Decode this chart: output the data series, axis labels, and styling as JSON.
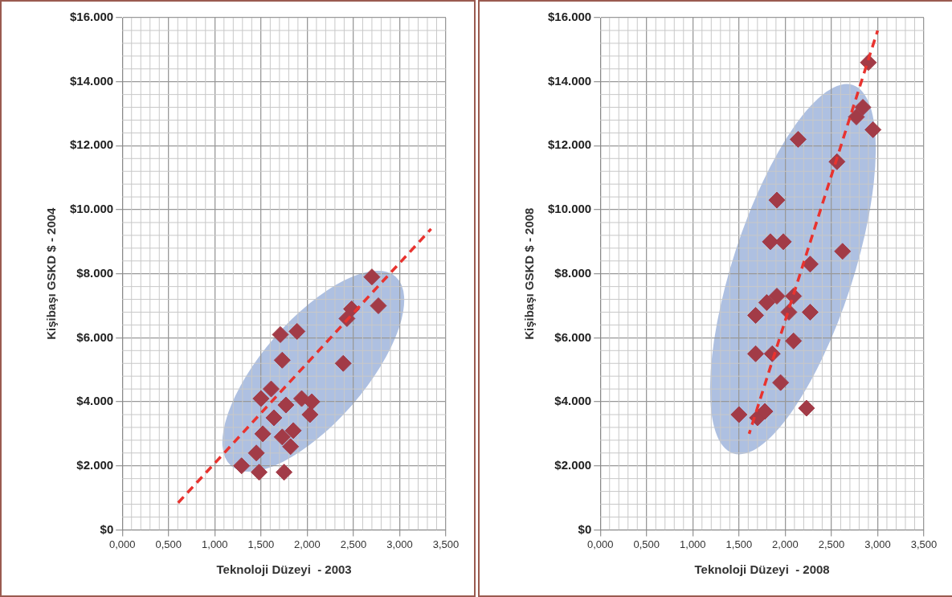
{
  "chart_data": [
    {
      "type": "scatter",
      "xlabel": "Teknoloji Düzeyi  - 2003",
      "ylabel": "Kişibaşı GSKD $ - 2004",
      "xlim": [
        0,
        3.5
      ],
      "ylim": [
        0,
        16000
      ],
      "xticks": [
        {
          "value": 0,
          "label": "0,000"
        },
        {
          "value": 0.5,
          "label": "0,500"
        },
        {
          "value": 1,
          "label": "1,000"
        },
        {
          "value": 1.5,
          "label": "1,500"
        },
        {
          "value": 2,
          "label": "2,000"
        },
        {
          "value": 2.5,
          "label": "2,500"
        },
        {
          "value": 3,
          "label": "3,000"
        },
        {
          "value": 3.5,
          "label": "3,500"
        }
      ],
      "yticks": [
        {
          "value": 0,
          "label": "$0"
        },
        {
          "value": 2000,
          "label": "$2.000"
        },
        {
          "value": 4000,
          "label": "$4.000"
        },
        {
          "value": 6000,
          "label": "$6.000"
        },
        {
          "value": 8000,
          "label": "$8.000"
        },
        {
          "value": 10000,
          "label": "$10.000"
        },
        {
          "value": 12000,
          "label": "$12.000"
        },
        {
          "value": 14000,
          "label": "$14.000"
        },
        {
          "value": 16000,
          "label": "$16.000"
        }
      ],
      "grid": true,
      "legend": false,
      "series": [
        {
          "type": "scatter",
          "marker": "diamond",
          "color": "#a23b47",
          "x": [
            2.7,
            2.77,
            2.48,
            2.43,
            1.71,
            1.89,
            1.73,
            2.39,
            1.61,
            1.5,
            1.94,
            2.05,
            1.77,
            1.64,
            2.03,
            1.85,
            1.52,
            1.73,
            1.82,
            1.45,
            1.29,
            1.48,
            1.75
          ],
          "values": [
            7900,
            7000,
            6900,
            6600,
            6100,
            6200,
            5300,
            5200,
            4400,
            4100,
            4100,
            4000,
            3900,
            3500,
            3600,
            3100,
            3000,
            2900,
            2600,
            2400,
            2000,
            1800,
            1800
          ]
        },
        {
          "type": "line",
          "color": "#e8332f",
          "line_style": "dashed",
          "x": [
            0.59,
            3.34
          ],
          "values": [
            800,
            9400
          ]
        }
      ]
    },
    {
      "type": "scatter",
      "xlabel": "Teknoloji Düzeyi  - 2008",
      "ylabel": "Kişibaşı GSKD $ - 2008",
      "xlim": [
        0,
        3.5
      ],
      "ylim": [
        0,
        16000
      ],
      "xticks": [
        {
          "value": 0,
          "label": "0,000"
        },
        {
          "value": 0.5,
          "label": "0,500"
        },
        {
          "value": 1,
          "label": "1,000"
        },
        {
          "value": 1.5,
          "label": "1,500"
        },
        {
          "value": 2,
          "label": "2,000"
        },
        {
          "value": 2.5,
          "label": "2,500"
        },
        {
          "value": 3,
          "label": "3,000"
        },
        {
          "value": 3.5,
          "label": "3,500"
        }
      ],
      "yticks": [
        {
          "value": 0,
          "label": "$0"
        },
        {
          "value": 2000,
          "label": "$2.000"
        },
        {
          "value": 4000,
          "label": "$4.000"
        },
        {
          "value": 6000,
          "label": "$6.000"
        },
        {
          "value": 8000,
          "label": "$8.000"
        },
        {
          "value": 10000,
          "label": "$10.000"
        },
        {
          "value": 12000,
          "label": "$12.000"
        },
        {
          "value": 14000,
          "label": "$14.000"
        },
        {
          "value": 16000,
          "label": "$16.000"
        }
      ],
      "grid": true,
      "legend": false,
      "series": [
        {
          "type": "scatter",
          "marker": "diamond",
          "color": "#a23b47",
          "x": [
            2.9,
            2.84,
            2.77,
            2.95,
            2.14,
            2.56,
            1.91,
            1.84,
            1.98,
            2.62,
            2.27,
            2.09,
            1.91,
            1.8,
            1.68,
            2.04,
            2.27,
            2.09,
            1.68,
            1.86,
            1.95,
            2.23,
            1.5,
            1.7,
            1.78
          ],
          "values": [
            14600,
            13200,
            12900,
            12500,
            12200,
            11500,
            10300,
            9000,
            9000,
            8700,
            8300,
            7300,
            7300,
            7100,
            6700,
            6800,
            6800,
            5900,
            5500,
            5500,
            4600,
            3800,
            3600,
            3500,
            3700
          ]
        },
        {
          "type": "line",
          "color": "#e8332f",
          "line_style": "dashed",
          "x": [
            1.61,
            3.0
          ],
          "values": [
            3000,
            15600
          ]
        }
      ]
    }
  ]
}
